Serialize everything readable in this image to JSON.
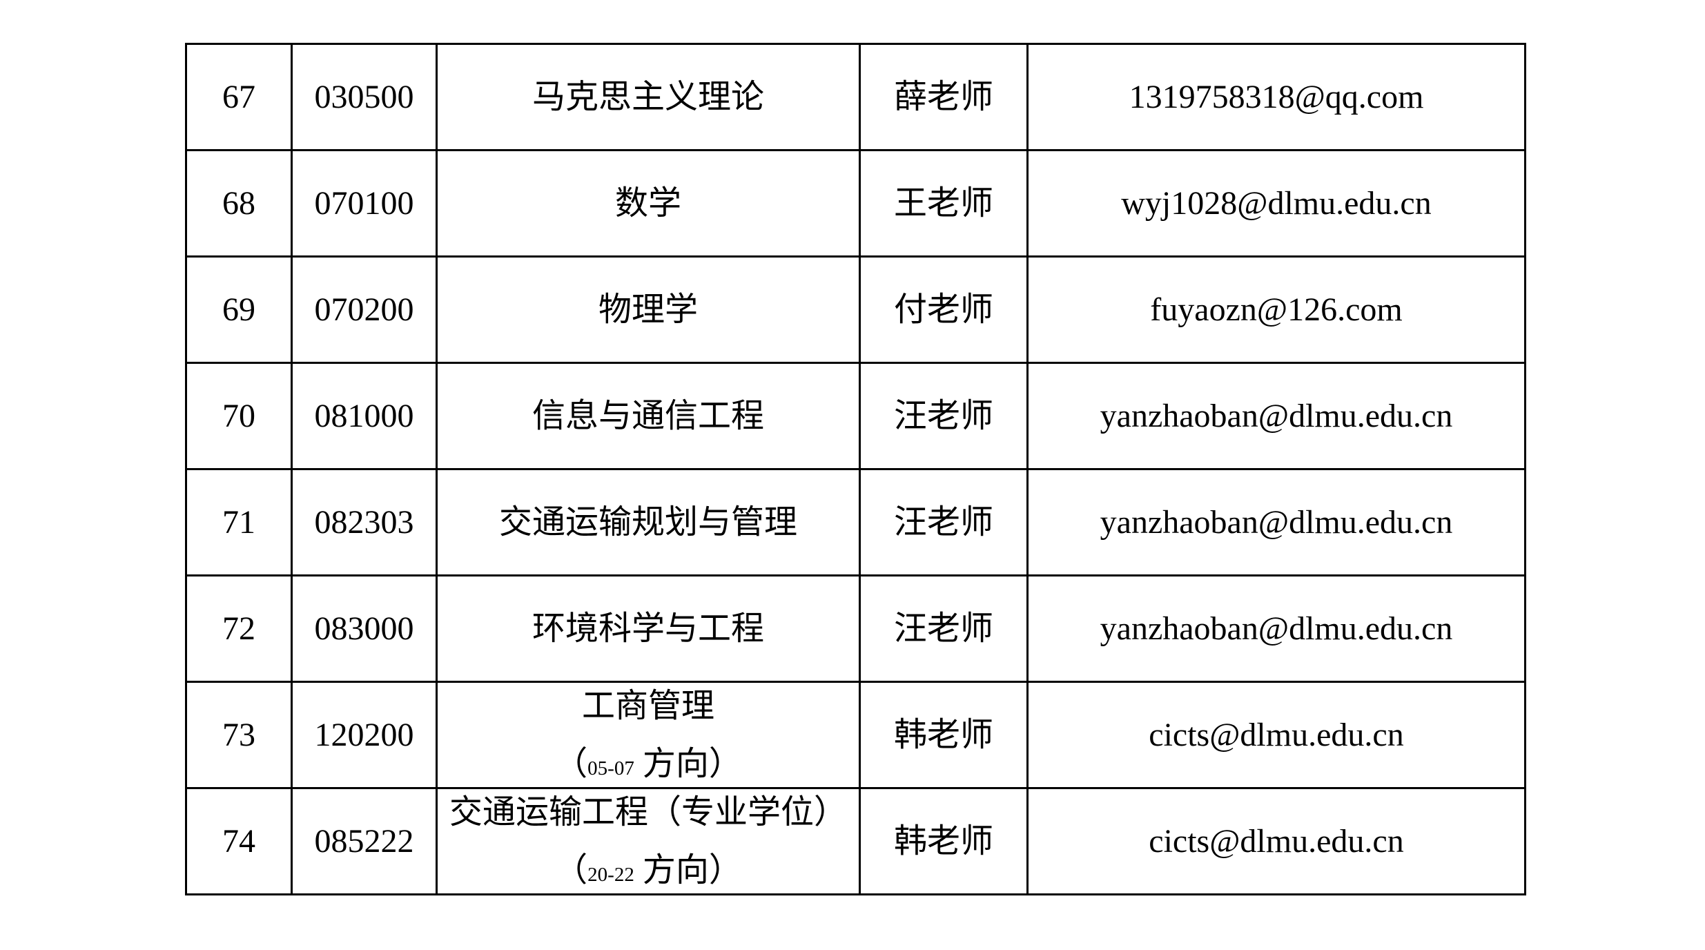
{
  "table": {
    "rows": [
      {
        "num": "67",
        "code": "030500",
        "major": "马克思主义理论",
        "teacher": "薛老师",
        "email": "1319758318@qq.com"
      },
      {
        "num": "68",
        "code": "070100",
        "major": "数学",
        "teacher": "王老师",
        "email": "wyj1028@dlmu.edu.cn"
      },
      {
        "num": "69",
        "code": "070200",
        "major": "物理学",
        "teacher": "付老师",
        "email": "fuyaozn@126.com"
      },
      {
        "num": "70",
        "code": "081000",
        "major": "信息与通信工程",
        "teacher": "汪老师",
        "email": "yanzhaoban@dlmu.edu.cn"
      },
      {
        "num": "71",
        "code": "082303",
        "major": "交通运输规划与管理",
        "teacher": "汪老师",
        "email": "yanzhaoban@dlmu.edu.cn"
      },
      {
        "num": "72",
        "code": "083000",
        "major": "环境科学与工程",
        "teacher": "汪老师",
        "email": "yanzhaoban@dlmu.edu.cn"
      },
      {
        "num": "73",
        "code": "120200",
        "major": "工商管理",
        "note_open": "（",
        "note_num": "05-07",
        "note_close": " 方向）",
        "teacher": "韩老师",
        "email": "cicts@dlmu.edu.cn"
      },
      {
        "num": "74",
        "code": "085222",
        "major": "交通运输工程（专业学位）",
        "note_open": "（",
        "note_num": "20-22",
        "note_close": " 方向）",
        "teacher": "韩老师",
        "email": "cicts@dlmu.edu.cn"
      }
    ]
  }
}
